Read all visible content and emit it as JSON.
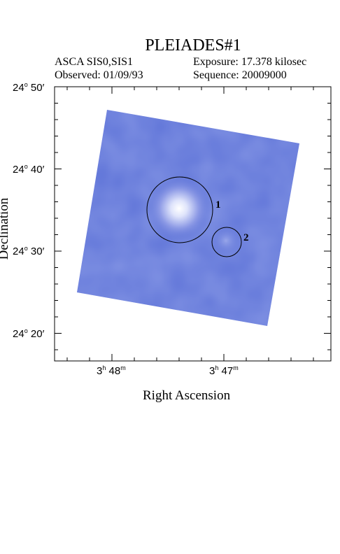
{
  "header": {
    "title": "PLEIADES#1",
    "instrument": "ASCA SIS0,SIS1",
    "exposure": "Exposure: 17.378 kilosec",
    "observed": "Observed: 01/09/93",
    "sequence": "Sequence: 20009000"
  },
  "axes": {
    "x_title": "Right Ascension",
    "y_title": "Declination",
    "y_ticks": [
      {
        "deg": "24",
        "min": "50"
      },
      {
        "deg": "24",
        "min": "40"
      },
      {
        "deg": "24",
        "min": "30"
      },
      {
        "deg": "24",
        "min": "20"
      }
    ],
    "x_ticks": [
      {
        "h": "3",
        "m": "48"
      },
      {
        "h": "3",
        "m": "47"
      }
    ]
  },
  "sources": [
    {
      "label": "1"
    },
    {
      "label": "2"
    }
  ],
  "colors": {
    "field": "#5f74d8",
    "background": "#ffffff",
    "axes": "#000000"
  }
}
